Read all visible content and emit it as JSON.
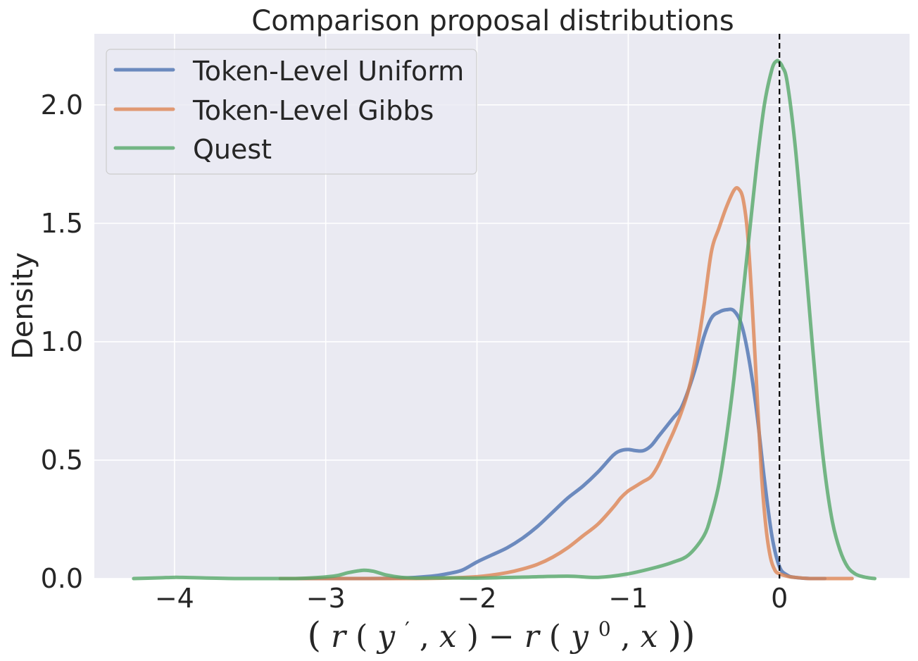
{
  "chart_data": {
    "type": "line",
    "title": "Comparison proposal distributions",
    "ylabel": "Density",
    "xlabel_parts": {
      "open": "(",
      "r1": "r",
      "p1": "(",
      "y1": "y",
      "prime": "′",
      "comma1": ", ",
      "x1": "x",
      "close1": ")",
      "minus": " − ",
      "r2": "r",
      "p2": "(",
      "y2": "y",
      "sup0": "0",
      "comma2": ", ",
      "x2": "x",
      "close2": "))"
    },
    "xlim": [
      -4.53,
      0.86
    ],
    "ylim": [
      0,
      2.3
    ],
    "xticks": [
      -4,
      -3,
      -2,
      -1,
      0
    ],
    "xtick_labels": [
      "−4",
      "−3",
      "−2",
      "−1",
      "0"
    ],
    "yticks": [
      0,
      0.5,
      1.0,
      1.5,
      2.0
    ],
    "ytick_labels": [
      "0.0",
      "0.5",
      "1.0",
      "1.5",
      "2.0"
    ],
    "grid": true,
    "vline": {
      "x": 0,
      "style": "dashed",
      "color": "#000000"
    },
    "legend": {
      "location": "top-left"
    },
    "series": [
      {
        "name": "Token-Level Uniform",
        "color": "#4c72b0",
        "x": [
          -3.3,
          -2.8,
          -2.5,
          -2.3,
          -2.2,
          -2.1,
          -2.0,
          -1.9,
          -1.8,
          -1.7,
          -1.6,
          -1.5,
          -1.4,
          -1.3,
          -1.2,
          -1.1,
          -1.05,
          -1.0,
          -0.95,
          -0.9,
          -0.85,
          -0.8,
          -0.75,
          -0.7,
          -0.65,
          -0.6,
          -0.55,
          -0.5,
          -0.45,
          -0.4,
          -0.35,
          -0.3,
          -0.25,
          -0.2,
          -0.15,
          -0.1,
          -0.05,
          0.0,
          0.05,
          0.1,
          0.2,
          0.3
        ],
        "y": [
          0.0,
          0.0,
          0.002,
          0.01,
          0.02,
          0.035,
          0.07,
          0.1,
          0.13,
          0.17,
          0.22,
          0.28,
          0.34,
          0.39,
          0.45,
          0.52,
          0.54,
          0.545,
          0.54,
          0.54,
          0.56,
          0.6,
          0.64,
          0.68,
          0.72,
          0.8,
          0.9,
          1.02,
          1.1,
          1.125,
          1.135,
          1.13,
          1.07,
          0.92,
          0.7,
          0.42,
          0.18,
          0.05,
          0.015,
          0.005,
          0.0,
          0.0
        ]
      },
      {
        "name": "Token-Level Gibbs",
        "color": "#dd8452",
        "x": [
          -3.3,
          -2.5,
          -2.2,
          -2.0,
          -1.9,
          -1.8,
          -1.7,
          -1.6,
          -1.5,
          -1.4,
          -1.3,
          -1.2,
          -1.1,
          -1.05,
          -1.0,
          -0.95,
          -0.9,
          -0.85,
          -0.8,
          -0.75,
          -0.7,
          -0.65,
          -0.6,
          -0.55,
          -0.5,
          -0.45,
          -0.4,
          -0.35,
          -0.3,
          -0.27,
          -0.24,
          -0.21,
          -0.18,
          -0.15,
          -0.12,
          -0.09,
          -0.06,
          -0.03,
          0.0,
          0.05,
          0.1,
          0.2,
          0.3,
          0.48
        ],
        "y": [
          0.0,
          0.0,
          0.002,
          0.008,
          0.015,
          0.025,
          0.04,
          0.06,
          0.09,
          0.13,
          0.18,
          0.23,
          0.3,
          0.34,
          0.37,
          0.39,
          0.41,
          0.43,
          0.48,
          0.55,
          0.62,
          0.7,
          0.8,
          0.95,
          1.15,
          1.38,
          1.48,
          1.57,
          1.64,
          1.645,
          1.6,
          1.45,
          1.15,
          0.8,
          0.45,
          0.22,
          0.09,
          0.035,
          0.02,
          0.01,
          0.005,
          0.0,
          0.0,
          0.0
        ]
      },
      {
        "name": "Quest",
        "color": "#55a868",
        "x": [
          -4.27,
          -4.1,
          -4.0,
          -3.9,
          -3.6,
          -3.2,
          -2.95,
          -2.85,
          -2.75,
          -2.68,
          -2.6,
          -2.5,
          -2.4,
          -2.2,
          -2.0,
          -1.7,
          -1.4,
          -1.2,
          -1.0,
          -0.8,
          -0.7,
          -0.6,
          -0.5,
          -0.45,
          -0.4,
          -0.35,
          -0.3,
          -0.25,
          -0.2,
          -0.15,
          -0.1,
          -0.05,
          -0.02,
          0.0,
          0.02,
          0.05,
          0.1,
          0.15,
          0.2,
          0.25,
          0.3,
          0.35,
          0.4,
          0.45,
          0.5,
          0.55,
          0.6,
          0.63
        ],
        "y": [
          0.0,
          0.003,
          0.005,
          0.004,
          0.0,
          0.0,
          0.01,
          0.025,
          0.035,
          0.03,
          0.015,
          0.005,
          0.002,
          0.003,
          0.002,
          0.006,
          0.01,
          0.005,
          0.02,
          0.05,
          0.07,
          0.1,
          0.18,
          0.27,
          0.4,
          0.6,
          0.85,
          1.15,
          1.45,
          1.75,
          2.0,
          2.15,
          2.185,
          2.18,
          2.16,
          2.1,
          1.85,
          1.5,
          1.12,
          0.75,
          0.45,
          0.24,
          0.12,
          0.05,
          0.02,
          0.008,
          0.002,
          0.0
        ]
      }
    ]
  }
}
